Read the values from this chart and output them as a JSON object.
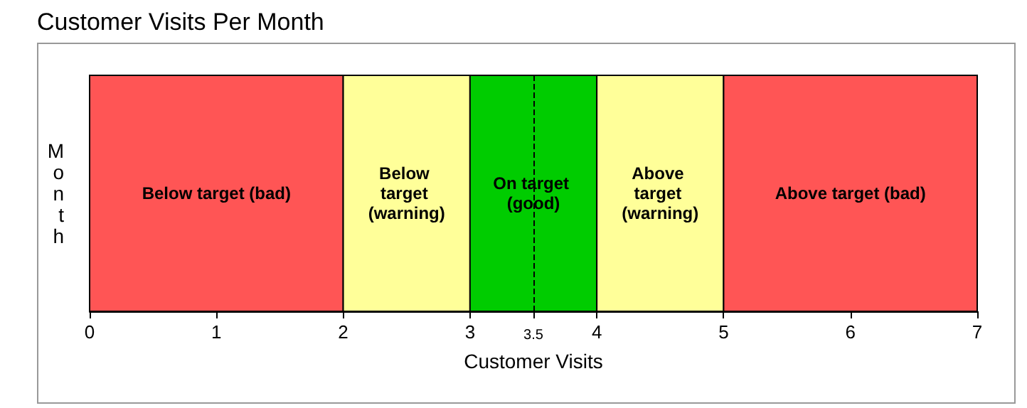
{
  "chart_data": {
    "type": "bar",
    "orientation": "horizontal",
    "title": "Customer Visits Per Month",
    "xlabel": "Customer Visits",
    "ylabel": "Month",
    "categories": [
      null
    ],
    "values": [
      null
    ],
    "xlim": [
      0,
      7
    ],
    "xticks": [
      0,
      1,
      2,
      3,
      {
        "value": 3.5,
        "label": "3.5"
      },
      4,
      5,
      6,
      7
    ],
    "bands": [
      {
        "axis": "x",
        "from": 0,
        "to": 2,
        "label": "Below target (bad)",
        "color": "#ff5555"
      },
      {
        "axis": "x",
        "from": 2,
        "to": 3,
        "label": "Below target (warning)",
        "color": "#ffff99"
      },
      {
        "axis": "x",
        "from": 3,
        "to": 4,
        "label": "On target (good)",
        "color": "#00cc00"
      },
      {
        "axis": "x",
        "from": 4,
        "to": 5,
        "label": "Above target (warning)",
        "color": "#ffff99"
      },
      {
        "axis": "x",
        "from": 5,
        "to": 7,
        "label": "Above target (bad)",
        "color": "#ff5555"
      }
    ],
    "ref_lines": [
      {
        "axis": "x",
        "value": 3.5,
        "label": null,
        "line_style": "dashed"
      }
    ]
  }
}
